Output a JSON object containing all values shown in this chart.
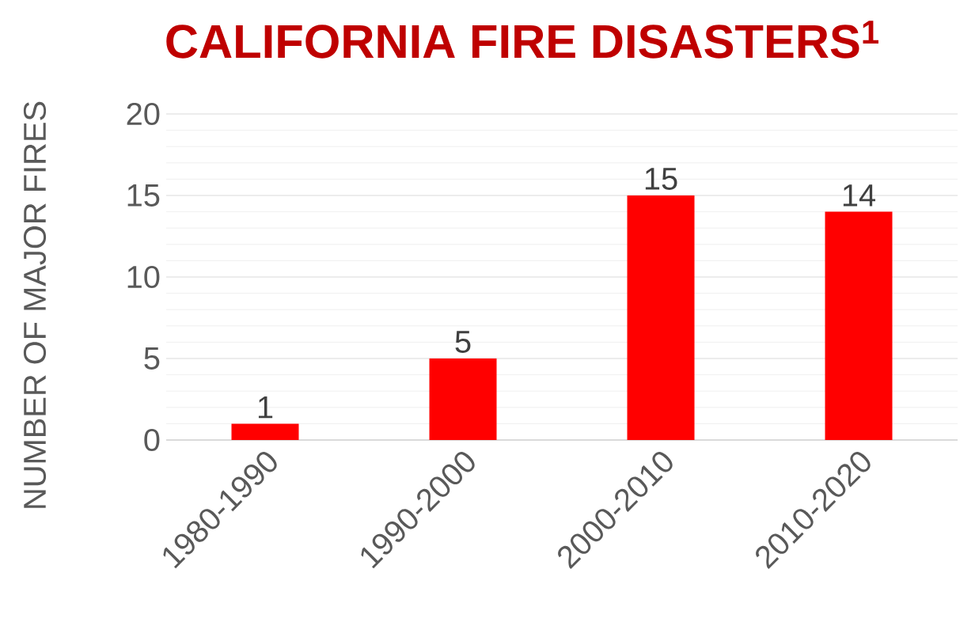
{
  "chart_data": {
    "type": "bar",
    "title": "CALIFORNIA FIRE DISASTERS$^{1}$",
    "ylabel": "NUMBER OF MAJOR FIRES",
    "categories": [
      "1980-1990",
      "1990-2000",
      "2000-2010",
      "2010-2020"
    ],
    "values": [
      1,
      5,
      15,
      14
    ],
    "color": "#ff0000",
    "ylim": [
      0,
      20
    ],
    "yticks": [
      0,
      5,
      10,
      15,
      20
    ],
    "grid": true,
    "data_labels": true
  }
}
